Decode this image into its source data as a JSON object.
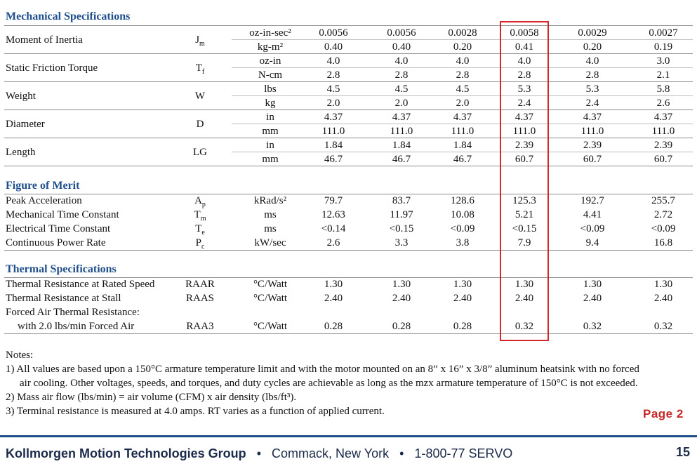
{
  "mechanical": {
    "title": "Mechanical Specifications",
    "rows": [
      {
        "label": "Moment of Inertia",
        "sym": "J",
        "sub": "m",
        "units": [
          "oz-in-sec²",
          "kg-m²"
        ],
        "values": [
          [
            "0.0056",
            "0.0056",
            "0.0028",
            "0.0058",
            "0.0029",
            "0.0027"
          ],
          [
            "0.40",
            "0.40",
            "0.20",
            "0.41",
            "0.20",
            "0.19"
          ]
        ]
      },
      {
        "label": "Static Friction Torque",
        "sym": "T",
        "sub": "f",
        "units": [
          "oz-in",
          "N-cm"
        ],
        "values": [
          [
            "4.0",
            "4.0",
            "4.0",
            "4.0",
            "4.0",
            "3.0"
          ],
          [
            "2.8",
            "2.8",
            "2.8",
            "2.8",
            "2.8",
            "2.1"
          ]
        ]
      },
      {
        "label": "Weight",
        "sym": "W",
        "sub": "",
        "units": [
          "lbs",
          "kg"
        ],
        "values": [
          [
            "4.5",
            "4.5",
            "4.5",
            "5.3",
            "5.3",
            "5.8"
          ],
          [
            "2.0",
            "2.0",
            "2.0",
            "2.4",
            "2.4",
            "2.6"
          ]
        ]
      },
      {
        "label": "Diameter",
        "sym": "D",
        "sub": "",
        "units": [
          "in",
          "mm"
        ],
        "values": [
          [
            "4.37",
            "4.37",
            "4.37",
            "4.37",
            "4.37",
            "4.37"
          ],
          [
            "111.0",
            "111.0",
            "111.0",
            "111.0",
            "111.0",
            "111.0"
          ]
        ]
      },
      {
        "label": "Length",
        "sym": "LG",
        "sub": "",
        "units": [
          "in",
          "mm"
        ],
        "values": [
          [
            "1.84",
            "1.84",
            "1.84",
            "2.39",
            "2.39",
            "2.39"
          ],
          [
            "46.7",
            "46.7",
            "46.7",
            "60.7",
            "60.7",
            "60.7"
          ]
        ]
      }
    ]
  },
  "merit": {
    "title": "Figure of Merit",
    "rows": [
      {
        "label": "Peak Acceleration",
        "sym": "A",
        "sub": "p",
        "unit": "kRad/s²",
        "values": [
          "79.7",
          "83.7",
          "128.6",
          "125.3",
          "192.7",
          "255.7"
        ]
      },
      {
        "label": "Mechanical Time Constant",
        "sym": "T",
        "sub": "m",
        "unit": "ms",
        "values": [
          "12.63",
          "11.97",
          "10.08",
          "5.21",
          "4.41",
          "2.72"
        ]
      },
      {
        "label": "Electrical Time Constant",
        "sym": "T",
        "sub": "e",
        "unit": "ms",
        "values": [
          "<0.14",
          "<0.15",
          "<0.09",
          "<0.15",
          "<0.09",
          "<0.09"
        ]
      },
      {
        "label": "Continuous Power Rate",
        "sym": "P",
        "sub": "c",
        "unit": "kW/sec",
        "values": [
          "2.6",
          "3.3",
          "3.8",
          "7.9",
          "9.4",
          "16.8"
        ]
      }
    ]
  },
  "thermal": {
    "title": "Thermal Specifications",
    "rows": [
      {
        "label": "Thermal Resistance at Rated Speed",
        "sym": "RAAR",
        "unit": "°C/Watt",
        "values": [
          "1.30",
          "1.30",
          "1.30",
          "1.30",
          "1.30",
          "1.30"
        ]
      },
      {
        "label": "Thermal Resistance at Stall",
        "sym": "RAAS",
        "unit": "°C/Watt",
        "values": [
          "2.40",
          "2.40",
          "2.40",
          "2.40",
          "2.40",
          "2.40"
        ]
      },
      {
        "label": "Forced Air Thermal Resistance:",
        "sym": "",
        "unit": "",
        "values": [
          "",
          "",
          "",
          "",
          "",
          ""
        ]
      },
      {
        "label": "with 2.0 lbs/min Forced Air",
        "sym": "RAA3",
        "unit": "°C/Watt",
        "values": [
          "0.28",
          "0.28",
          "0.28",
          "0.32",
          "0.32",
          "0.32"
        ]
      }
    ]
  },
  "notes": {
    "heading": "Notes:",
    "lines": [
      "1)  All values are based upon a 150°C armature temperature limit and with the motor mounted on an 8” x 16” x 3/8” aluminum heatsink with no forced",
      "air cooling.  Other voltages, speeds, and torques, and duty cycles are achievable as long as the mzx armature temperature of 150°C is not exceeded.",
      "2)  Mass air flow (lbs/min) = air volume (CFM) x air density (lbs/ft³).",
      "3)  Terminal resistance is measured at 4.0 amps.  RT varies as a function of applied current."
    ]
  },
  "page_annotation": "Page  2",
  "footer": {
    "company": "Kollmorgen Motion Technologies Group",
    "sep1": "•",
    "location": "Commack, New York",
    "sep2": "•",
    "phone": "1-800-77 SERVO",
    "page_number": "15"
  },
  "colors": {
    "heading": "#1f4e8c",
    "highlight": "#d9262b",
    "page_annotation": "#c62828"
  }
}
